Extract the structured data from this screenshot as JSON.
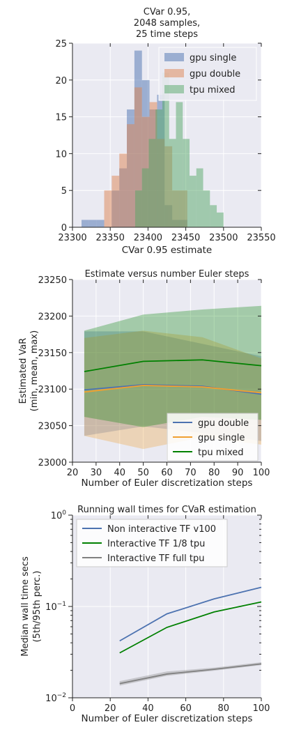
{
  "chart_data": [
    {
      "type": "histogram",
      "title_lines": [
        "CVar 0.95,",
        "2048 samples,",
        "25 time steps"
      ],
      "xlabel": "CVar 0.95 estimate",
      "ylabel": "",
      "xlim": [
        23300,
        23550
      ],
      "ylim": [
        0,
        25
      ],
      "xticks": [
        23300,
        23350,
        23400,
        23450,
        23500,
        23550
      ],
      "yticks": [
        0,
        5,
        10,
        15,
        20,
        25
      ],
      "grid": true,
      "legend_position": "top-right",
      "series": [
        {
          "name": "gpu single",
          "color": "#4c72b0",
          "bins": [
            [
              23312,
              23322,
              1
            ],
            [
              23322,
              23332,
              1
            ],
            [
              23332,
              23342,
              1
            ],
            [
              23342,
              23352,
              0
            ],
            [
              23352,
              23362,
              5
            ],
            [
              23362,
              23372,
              8
            ],
            [
              23372,
              23382,
              16
            ],
            [
              23382,
              23392,
              24
            ],
            [
              23392,
              23402,
              20
            ],
            [
              23402,
              23412,
              16
            ],
            [
              23412,
              23422,
              18
            ],
            [
              23422,
              23432,
              3
            ],
            [
              23432,
              23442,
              1
            ],
            [
              23442,
              23452,
              1
            ]
          ]
        },
        {
          "name": "gpu double",
          "color": "#dd8452",
          "bins": [
            [
              23342,
              23352,
              5
            ],
            [
              23352,
              23362,
              7
            ],
            [
              23362,
              23372,
              10
            ],
            [
              23372,
              23382,
              14
            ],
            [
              23382,
              23392,
              19
            ],
            [
              23392,
              23402,
              15
            ],
            [
              23402,
              23412,
              17
            ],
            [
              23412,
              23422,
              12
            ],
            [
              23422,
              23432,
              11
            ],
            [
              23432,
              23442,
              5
            ],
            [
              23442,
              23452,
              5
            ]
          ]
        },
        {
          "name": "tpu mixed",
          "color": "#55a868",
          "bins": [
            [
              23383,
              23392,
              5
            ],
            [
              23392,
              23401,
              8
            ],
            [
              23401,
              23410,
              12
            ],
            [
              23410,
              23419,
              16
            ],
            [
              23419,
              23428,
              21
            ],
            [
              23428,
              23437,
              12
            ],
            [
              23437,
              23446,
              17
            ],
            [
              23446,
              23455,
              12
            ],
            [
              23455,
              23464,
              7
            ],
            [
              23464,
              23473,
              8
            ],
            [
              23473,
              23482,
              5
            ],
            [
              23482,
              23491,
              3
            ],
            [
              23491,
              23500,
              2
            ]
          ]
        }
      ]
    },
    {
      "type": "line",
      "title": "Estimate versus number Euler steps",
      "xlabel": "Number of Euler discretization steps",
      "ylabel_lines": [
        "Estimated VaR",
        "(min, mean, max)"
      ],
      "xlim": [
        20,
        100
      ],
      "ylim": [
        23000,
        23250
      ],
      "xticks": [
        20,
        30,
        40,
        50,
        60,
        70,
        80,
        90,
        100
      ],
      "yticks": [
        23000,
        23050,
        23100,
        23150,
        23200,
        23250
      ],
      "grid": true,
      "legend_position": "bottom-right",
      "x": [
        25,
        50,
        75,
        100
      ],
      "series": [
        {
          "name": "gpu double",
          "color": "#4c72b0",
          "mean": [
            23099,
            23106,
            23104,
            23093
          ],
          "min": [
            23036,
            23049,
            23040,
            23029
          ],
          "max": [
            23179,
            23179,
            23162,
            23145
          ]
        },
        {
          "name": "gpu single",
          "color": "#f0a030",
          "mean": [
            23096,
            23105,
            23103,
            23095
          ],
          "min": [
            23036,
            23018,
            23034,
            23024
          ],
          "max": [
            23170,
            23180,
            23171,
            23142
          ]
        },
        {
          "name": "tpu mixed",
          "color": "#008000",
          "mean": [
            23124,
            23138,
            23140,
            23132
          ],
          "min": [
            23062,
            23048,
            23062,
            23058
          ],
          "max": [
            23180,
            23202,
            23209,
            23214
          ]
        }
      ]
    },
    {
      "type": "line",
      "title": "Running wall times for CVaR estimation",
      "xlabel": "Number of Euler discretization steps",
      "ylabel_lines": [
        "Median wall time secs",
        "(5th/95th perc.)"
      ],
      "xlim": [
        0,
        100
      ],
      "ylim": [
        0.01,
        1
      ],
      "yscale": "log",
      "xticks": [
        0,
        20,
        40,
        60,
        80,
        100
      ],
      "ytick_values": [
        0.01,
        0.1,
        1
      ],
      "grid": true,
      "legend_position": "top-left",
      "x": [
        25,
        50,
        75,
        100
      ],
      "series": [
        {
          "name": "Non interactive TF v100",
          "color": "#4c72b0",
          "median": [
            0.042,
            0.083,
            0.121,
            0.162
          ],
          "p5": [
            0.042,
            0.083,
            0.121,
            0.162
          ],
          "p95": [
            0.042,
            0.083,
            0.121,
            0.162
          ]
        },
        {
          "name": "Interactive TF 1/8 tpu",
          "color": "#008000",
          "median": [
            0.031,
            0.059,
            0.087,
            0.112
          ],
          "p5": [
            0.031,
            0.059,
            0.087,
            0.112
          ],
          "p95": [
            0.031,
            0.059,
            0.087,
            0.112
          ]
        },
        {
          "name": "Interactive TF full tpu",
          "color": "#808080",
          "median": [
            0.0143,
            0.0182,
            0.0205,
            0.0235
          ],
          "p5": [
            0.0136,
            0.0174,
            0.0198,
            0.0228
          ],
          "p95": [
            0.0152,
            0.0194,
            0.0214,
            0.0245
          ]
        }
      ]
    }
  ]
}
